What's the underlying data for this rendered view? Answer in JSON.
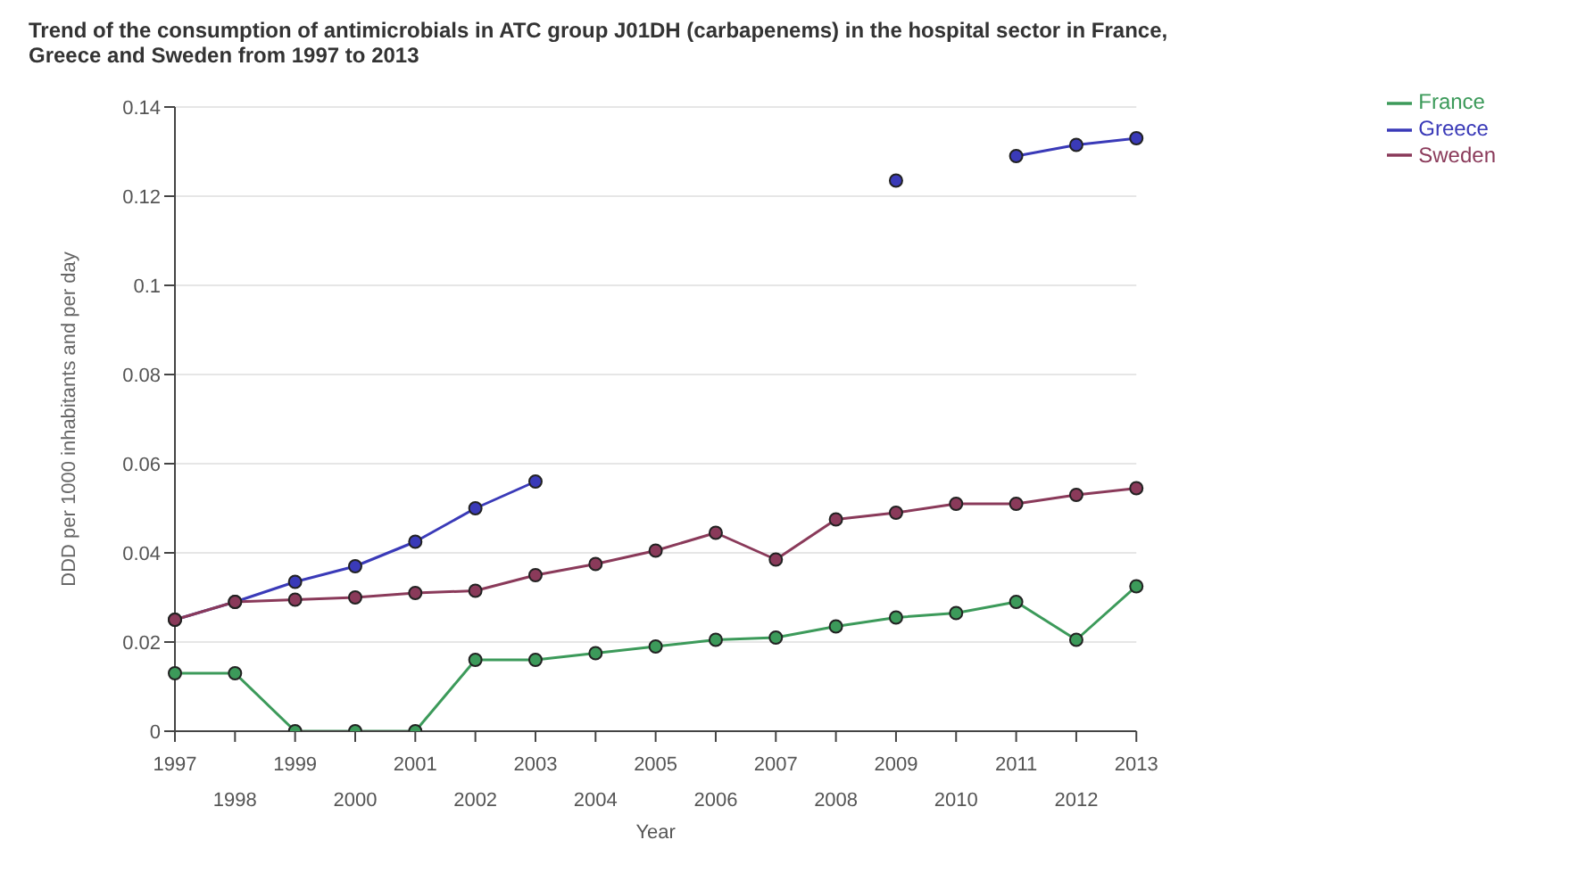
{
  "chart_data": {
    "type": "line",
    "title": "Trend of the consumption of antimicrobials in ATC group J01DH (carbapenems) in the hospital sector in France, Greece and Sweden from 1997 to 2013",
    "xlabel": "Year",
    "ylabel": "DDD per 1000 inhabitants and per day",
    "categories": [
      "1997",
      "1998",
      "1999",
      "2000",
      "2001",
      "2002",
      "2003",
      "2004",
      "2005",
      "2006",
      "2007",
      "2008",
      "2009",
      "2010",
      "2011",
      "2012",
      "2013"
    ],
    "series": [
      {
        "name": "France",
        "color": "#3c9a5a",
        "values": [
          0.013,
          0.013,
          0,
          0,
          0,
          0.016,
          0.016,
          0.0175,
          0.019,
          0.0205,
          0.021,
          0.0235,
          0.0255,
          0.0265,
          0.029,
          0.0205,
          0.0325
        ]
      },
      {
        "name": "Greece",
        "color": "#3a3ab8",
        "values": [
          0.025,
          0.029,
          0.0335,
          0.037,
          0.0425,
          0.05,
          0.056,
          null,
          null,
          null,
          null,
          null,
          0.1235,
          null,
          0.129,
          0.1315,
          0.133
        ]
      },
      {
        "name": "Sweden",
        "color": "#8a3a5a",
        "values": [
          0.025,
          0.029,
          0.0295,
          0.03,
          0.031,
          0.0315,
          0.035,
          0.0375,
          0.0405,
          0.0445,
          0.0385,
          0.0475,
          0.049,
          0.051,
          0.051,
          0.053,
          0.0545
        ]
      }
    ],
    "ylim": [
      0,
      0.14
    ],
    "yticks": [
      0,
      0.02,
      0.04,
      0.06,
      0.08,
      0.1,
      0.12,
      0.14
    ],
    "grid": "y",
    "legend": "top right",
    "marker": "circle",
    "line_style": "solid"
  }
}
